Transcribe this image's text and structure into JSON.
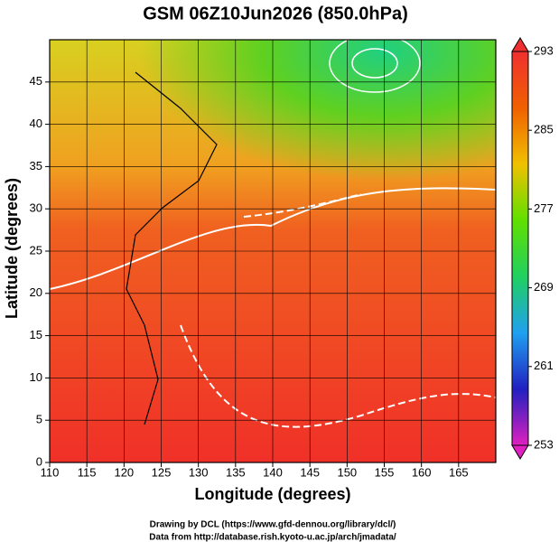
{
  "chart_data": {
    "type": "map",
    "title": "GSM 06Z10Jun2026 (850.0hPa)",
    "x_label": "Longitude (degrees)",
    "y_label": "Latitude  (degrees)",
    "xlim": [
      110,
      170
    ],
    "xticks": [
      110,
      115,
      120,
      125,
      130,
      135,
      140,
      145,
      150,
      155,
      160,
      165
    ],
    "ylim": [
      0,
      50
    ],
    "yticks": [
      0,
      5,
      10,
      15,
      20,
      25,
      30,
      35,
      40,
      45
    ],
    "grid": true,
    "colorbar": {
      "lim": [
        253,
        293
      ],
      "ticks": [
        253,
        261,
        269,
        277,
        285,
        293
      ],
      "colors": [
        "#e020c0",
        "#2020c0",
        "#20a0f0",
        "#20d060",
        "#60e000",
        "#f0c000",
        "#f06000",
        "#f03030"
      ]
    },
    "footer": [
      "Drawing by DCL (https://www.gfd-dennou.org/library/dcl/)",
      "Data from http://database.rish.kyoto-u.ac.jp/arch/jmadata/"
    ]
  }
}
